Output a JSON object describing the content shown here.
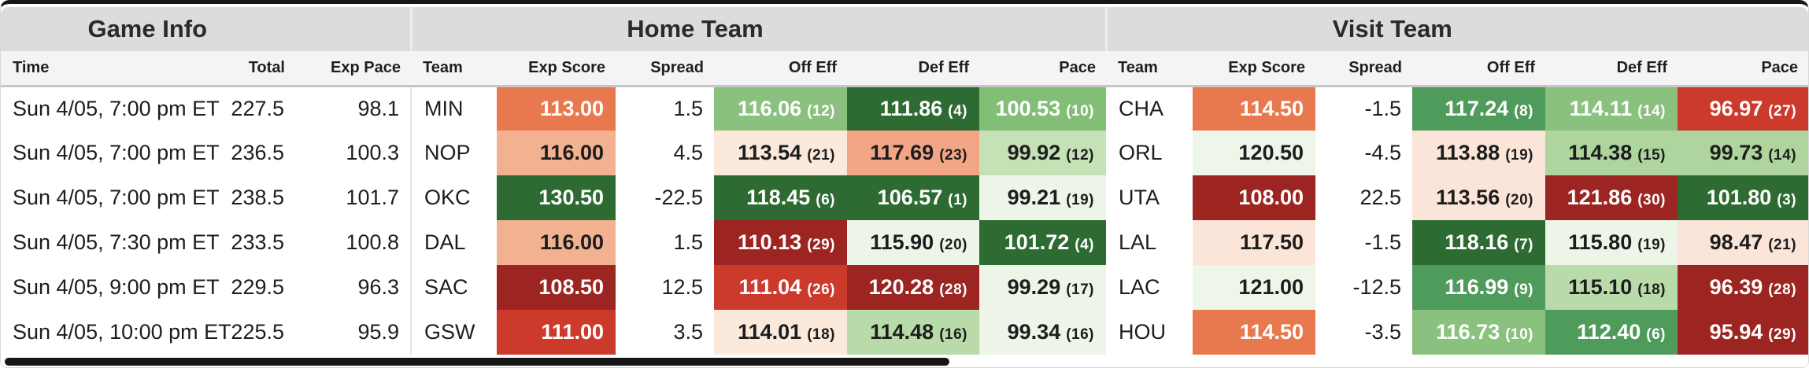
{
  "table": {
    "groups": {
      "game_info": "Game Info",
      "home": "Home Team",
      "visit": "Visit Team"
    },
    "columns": {
      "time": "Time",
      "total": "Total",
      "exp_pace": "Exp Pace",
      "team": "Team",
      "exp_score": "Exp Score",
      "spread": "Spread",
      "off_eff": "Off Eff",
      "def_eff": "Def Eff",
      "pace": "Pace"
    },
    "rows": [
      {
        "time": "Sun 4/05, 7:00 pm ET",
        "total": "227.5",
        "exp_pace": "98.1",
        "home": {
          "team": "MIN",
          "exp_score": {
            "v": "113.00",
            "bg": "#E8794F",
            "fg": "#FFFFFF"
          },
          "spread": "1.5",
          "off": {
            "v": "116.06",
            "rank": "(12)",
            "bg": "#8BC17E",
            "fg": "#FFFFFF"
          },
          "def": {
            "v": "111.86",
            "rank": "(4)",
            "bg": "#2E6B33",
            "fg": "#FFFFFF"
          },
          "pace": {
            "v": "100.53",
            "rank": "(10)",
            "bg": "#83BE76",
            "fg": "#FFFFFF"
          }
        },
        "visit": {
          "team": "CHA",
          "exp_score": {
            "v": "114.50",
            "bg": "#E8794F",
            "fg": "#FFFFFF"
          },
          "spread": "-1.5",
          "off": {
            "v": "117.24",
            "rank": "(8)",
            "bg": "#4F9B5B",
            "fg": "#FFFFFF"
          },
          "def": {
            "v": "114.11",
            "rank": "(14)",
            "bg": "#8BC17E",
            "fg": "#FFFFFF"
          },
          "pace": {
            "v": "96.97",
            "rank": "(27)",
            "bg": "#CC3A2C",
            "fg": "#FFFFFF"
          }
        }
      },
      {
        "time": "Sun 4/05, 7:00 pm ET",
        "total": "236.5",
        "exp_pace": "100.3",
        "home": {
          "team": "NOP",
          "exp_score": {
            "v": "116.00",
            "bg": "#F2B190",
            "fg": "#1D1D1D"
          },
          "spread": "4.5",
          "off": {
            "v": "113.54",
            "rank": "(21)",
            "bg": "#FBE9DC",
            "fg": "#1D1D1D"
          },
          "def": {
            "v": "117.69",
            "rank": "(23)",
            "bg": "#F2A685",
            "fg": "#1D1D1D"
          },
          "pace": {
            "v": "99.92",
            "rank": "(12)",
            "bg": "#C5E1B6",
            "fg": "#1D1D1D"
          }
        },
        "visit": {
          "team": "ORL",
          "exp_score": {
            "v": "120.50",
            "bg": "#EEF6EA",
            "fg": "#1D1D1D"
          },
          "spread": "-4.5",
          "off": {
            "v": "113.88",
            "rank": "(19)",
            "bg": "#FBE5D8",
            "fg": "#1D1D1D"
          },
          "def": {
            "v": "114.38",
            "rank": "(15)",
            "bg": "#AFD59F",
            "fg": "#1D1D1D"
          },
          "pace": {
            "v": "99.73",
            "rank": "(14)",
            "bg": "#AFD59F",
            "fg": "#1D1D1D"
          }
        }
      },
      {
        "time": "Sun 4/05, 7:00 pm ET",
        "total": "238.5",
        "exp_pace": "101.7",
        "home": {
          "team": "OKC",
          "exp_score": {
            "v": "130.50",
            "bg": "#2E6B33",
            "fg": "#FFFFFF"
          },
          "spread": "-22.5",
          "off": {
            "v": "118.45",
            "rank": "(6)",
            "bg": "#2E6B33",
            "fg": "#FFFFFF"
          },
          "def": {
            "v": "106.57",
            "rank": "(1)",
            "bg": "#2E6B33",
            "fg": "#FFFFFF"
          },
          "pace": {
            "v": "99.21",
            "rank": "(19)",
            "bg": "#ECF5E8",
            "fg": "#1D1D1D"
          }
        },
        "visit": {
          "team": "UTA",
          "exp_score": {
            "v": "108.00",
            "bg": "#9C2521",
            "fg": "#FFFFFF"
          },
          "spread": "22.5",
          "off": {
            "v": "113.56",
            "rank": "(20)",
            "bg": "#FBE5D8",
            "fg": "#1D1D1D"
          },
          "def": {
            "v": "121.86",
            "rank": "(30)",
            "bg": "#9C2521",
            "fg": "#FFFFFF"
          },
          "pace": {
            "v": "101.80",
            "rank": "(3)",
            "bg": "#2E6B33",
            "fg": "#FFFFFF"
          }
        }
      },
      {
        "time": "Sun 4/05, 7:30 pm ET",
        "total": "233.5",
        "exp_pace": "100.8",
        "home": {
          "team": "DAL",
          "exp_score": {
            "v": "116.00",
            "bg": "#F2B190",
            "fg": "#1D1D1D"
          },
          "spread": "1.5",
          "off": {
            "v": "110.13",
            "rank": "(29)",
            "bg": "#9C2521",
            "fg": "#FFFFFF"
          },
          "def": {
            "v": "115.90",
            "rank": "(20)",
            "bg": "#ECF5E8",
            "fg": "#1D1D1D"
          },
          "pace": {
            "v": "101.72",
            "rank": "(4)",
            "bg": "#2E6B33",
            "fg": "#FFFFFF"
          }
        },
        "visit": {
          "team": "LAL",
          "exp_score": {
            "v": "117.50",
            "bg": "#FBE5D8",
            "fg": "#1D1D1D"
          },
          "spread": "-1.5",
          "off": {
            "v": "118.16",
            "rank": "(7)",
            "bg": "#2E6B33",
            "fg": "#FFFFFF"
          },
          "def": {
            "v": "115.80",
            "rank": "(19)",
            "bg": "#ECF5E8",
            "fg": "#1D1D1D"
          },
          "pace": {
            "v": "98.47",
            "rank": "(21)",
            "bg": "#FBE5D8",
            "fg": "#1D1D1D"
          }
        }
      },
      {
        "time": "Sun 4/05, 9:00 pm ET",
        "total": "229.5",
        "exp_pace": "96.3",
        "home": {
          "team": "SAC",
          "exp_score": {
            "v": "108.50",
            "bg": "#9C2521",
            "fg": "#FFFFFF"
          },
          "spread": "12.5",
          "off": {
            "v": "111.04",
            "rank": "(26)",
            "bg": "#CC3A2C",
            "fg": "#FFFFFF"
          },
          "def": {
            "v": "120.28",
            "rank": "(28)",
            "bg": "#9C2521",
            "fg": "#FFFFFF"
          },
          "pace": {
            "v": "99.29",
            "rank": "(17)",
            "bg": "#ECF5E8",
            "fg": "#1D1D1D"
          }
        },
        "visit": {
          "team": "LAC",
          "exp_score": {
            "v": "121.00",
            "bg": "#EEF6EA",
            "fg": "#1D1D1D"
          },
          "spread": "-12.5",
          "off": {
            "v": "116.99",
            "rank": "(9)",
            "bg": "#4F9B5B",
            "fg": "#FFFFFF"
          },
          "def": {
            "v": "115.10",
            "rank": "(18)",
            "bg": "#B8DBA9",
            "fg": "#1D1D1D"
          },
          "pace": {
            "v": "96.39",
            "rank": "(28)",
            "bg": "#9C2521",
            "fg": "#FFFFFF"
          }
        }
      },
      {
        "time": "Sun 4/05, 10:00 pm ET",
        "total": "225.5",
        "exp_pace": "95.9",
        "home": {
          "team": "GSW",
          "exp_score": {
            "v": "111.00",
            "bg": "#CC3A2C",
            "fg": "#FFFFFF"
          },
          "spread": "3.5",
          "off": {
            "v": "114.01",
            "rank": "(18)",
            "bg": "#FBE9DC",
            "fg": "#1D1D1D"
          },
          "def": {
            "v": "114.48",
            "rank": "(16)",
            "bg": "#B8DBA9",
            "fg": "#1D1D1D"
          },
          "pace": {
            "v": "99.34",
            "rank": "(16)",
            "bg": "#ECF5E8",
            "fg": "#1D1D1D"
          }
        },
        "visit": {
          "team": "HOU",
          "exp_score": {
            "v": "114.50",
            "bg": "#E8794F",
            "fg": "#FFFFFF"
          },
          "spread": "-3.5",
          "off": {
            "v": "116.73",
            "rank": "(10)",
            "bg": "#8BC17E",
            "fg": "#FFFFFF"
          },
          "def": {
            "v": "112.40",
            "rank": "(6)",
            "bg": "#4F9B5B",
            "fg": "#FFFFFF"
          },
          "pace": {
            "v": "95.94",
            "rank": "(29)",
            "bg": "#9C2521",
            "fg": "#FFFFFF"
          }
        }
      }
    ]
  },
  "colors": {
    "heat_dark_green": "#2E6B33",
    "heat_green": "#4F9B5B",
    "heat_light_green": "#8BC17E",
    "heat_pale_green": "#ECF5E8",
    "heat_pale_red": "#FBE5D8",
    "heat_salmon": "#F2A685",
    "heat_orange": "#E8794F",
    "heat_red": "#CC3A2C",
    "heat_dark_red": "#9C2521",
    "card_top_border": "#161616",
    "group_header_bg": "#DCDCDC",
    "sub_header_bg": "#F4F4F4"
  }
}
